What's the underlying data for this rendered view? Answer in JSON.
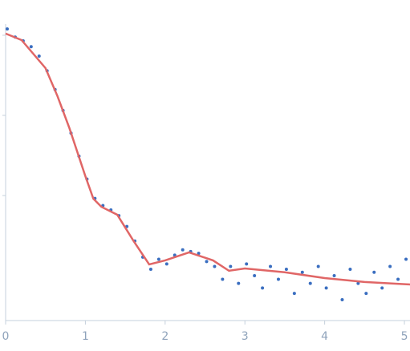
{
  "chart_data": {
    "type": "scatter",
    "xlim": [
      0,
      5.07
    ],
    "xticks": [
      0,
      1,
      2,
      3,
      4,
      5
    ],
    "ylim": [
      0.000275,
      1.38
    ],
    "yticks": [
      0.01,
      0.1,
      1
    ],
    "ylog": true,
    "series": [
      {
        "mode": "markers",
        "color": "#3a6ec0",
        "x": [
          0.02,
          0.12,
          0.22,
          0.32,
          0.42,
          0.52,
          0.62,
          0.72,
          0.82,
          0.92,
          1.02,
          1.12,
          1.22,
          1.32,
          1.42,
          1.52,
          1.62,
          1.72,
          1.82,
          1.92,
          2.02,
          2.12,
          2.22,
          2.32,
          2.42,
          2.52,
          2.62,
          2.72,
          2.82,
          2.92,
          3.02,
          3.12,
          3.22,
          3.32,
          3.42,
          3.52,
          3.62,
          3.72,
          3.82,
          3.92,
          4.02,
          4.12,
          4.22,
          4.32,
          4.42,
          4.52,
          4.62,
          4.72,
          4.82,
          4.92,
          5.02
        ],
        "values": [
          1.2,
          0.95,
          0.85,
          0.72,
          0.55,
          0.36,
          0.21,
          0.115,
          0.06,
          0.031,
          0.016,
          0.0092,
          0.0075,
          0.0066,
          0.0056,
          0.0041,
          0.0027,
          0.0017,
          0.0012,
          0.0016,
          0.0014,
          0.0018,
          0.0021,
          0.002,
          0.0019,
          0.0015,
          0.0013,
          0.0009,
          0.0013,
          0.0008,
          0.0014,
          0.001,
          0.0007,
          0.0013,
          0.0009,
          0.0012,
          0.0006,
          0.0011,
          0.0008,
          0.0013,
          0.0007,
          0.001,
          0.0005,
          0.0012,
          0.0008,
          0.0006,
          0.0011,
          0.0007,
          0.0013,
          0.0009,
          0.0016
        ]
      },
      {
        "mode": "line",
        "color": "#e06666",
        "x": [
          0,
          0.2,
          0.5,
          0.65,
          0.8,
          1.0,
          1.1,
          1.2,
          1.4,
          1.6,
          1.8,
          2.0,
          2.3,
          2.6,
          2.8,
          3.0,
          3.5,
          4.0,
          4.5,
          5.07
        ],
        "values": [
          1.05,
          0.871,
          0.389,
          0.174,
          0.0692,
          0.0174,
          0.00912,
          0.00724,
          0.00575,
          0.00275,
          0.00138,
          0.00155,
          0.00195,
          0.00155,
          0.00115,
          0.00123,
          0.0011,
          0.000933,
          0.000832,
          0.000776
        ]
      }
    ]
  }
}
